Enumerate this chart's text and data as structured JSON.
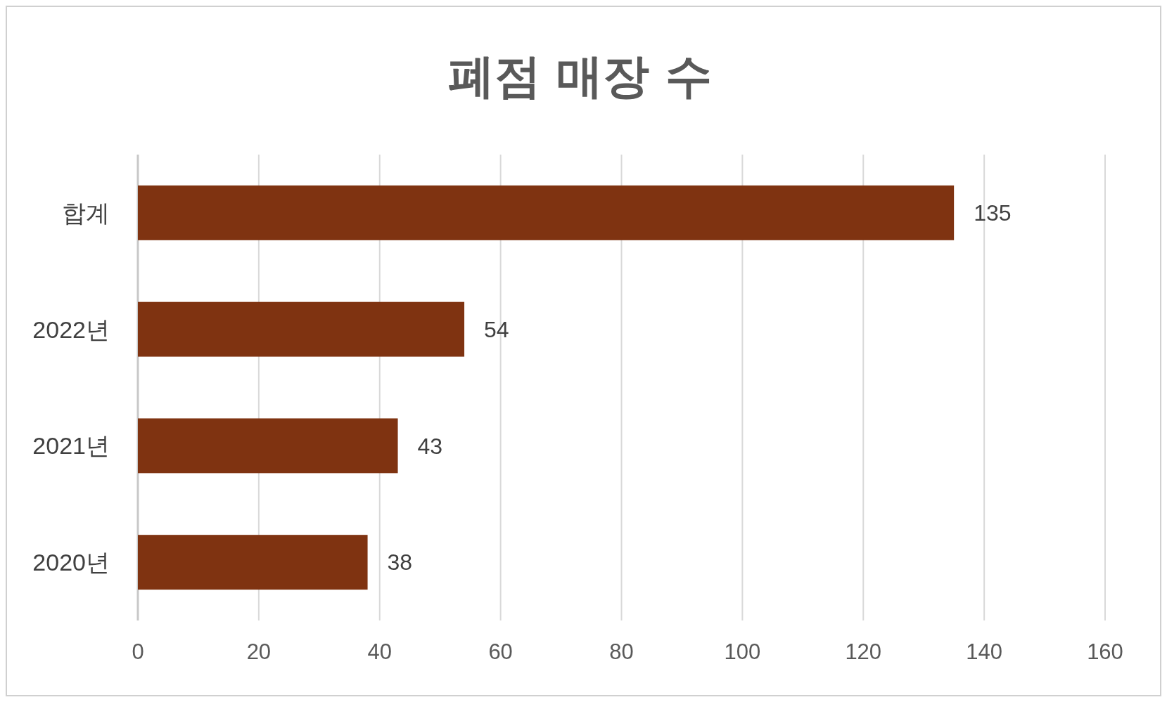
{
  "chart_data": {
    "type": "bar",
    "orientation": "horizontal",
    "title": "폐점 매장 수",
    "categories": [
      "합계",
      "2022년",
      "2021년",
      "2020년"
    ],
    "values": [
      135,
      54,
      43,
      38
    ],
    "color": "#7f3311",
    "xlim": [
      0,
      160
    ],
    "xticks": [
      0,
      20,
      40,
      60,
      80,
      100,
      120,
      140,
      160
    ],
    "grid": "x",
    "data_labels": true
  }
}
